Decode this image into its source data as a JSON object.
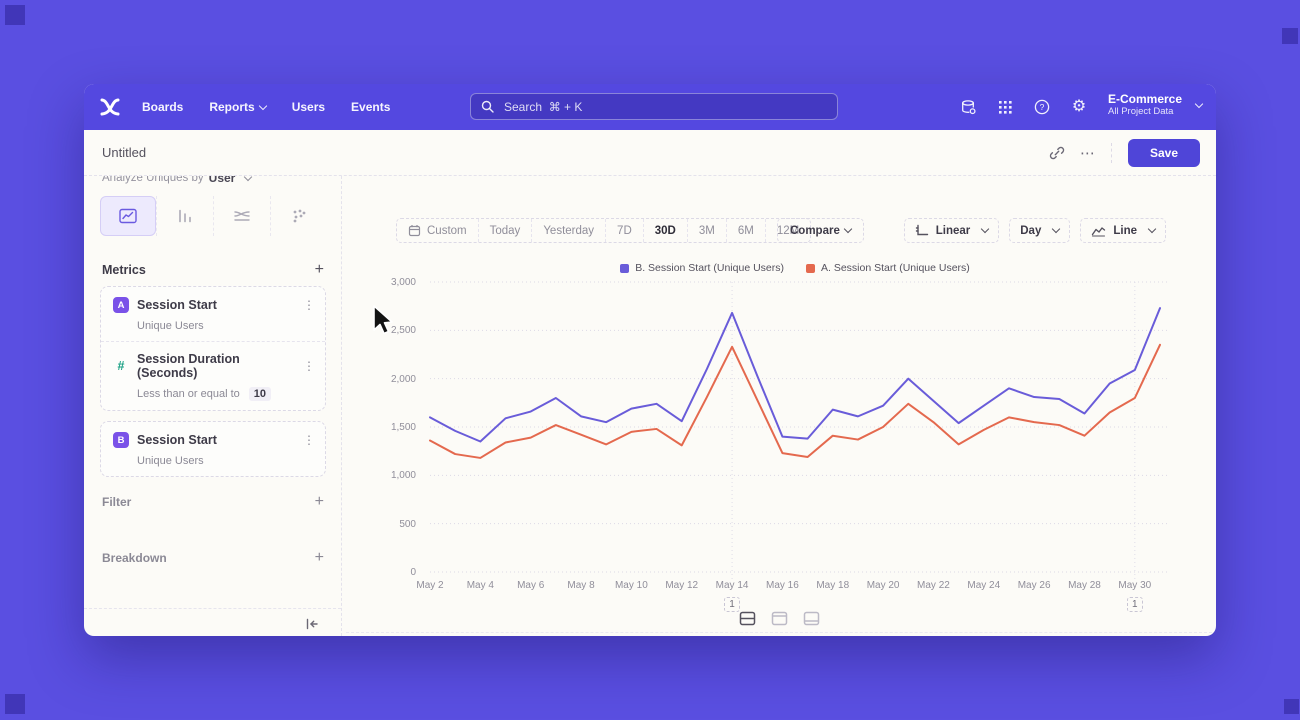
{
  "navbar": {
    "items": [
      {
        "label": "Boards",
        "chevron": false
      },
      {
        "label": "Reports",
        "chevron": true
      },
      {
        "label": "Users",
        "chevron": false
      },
      {
        "label": "Events",
        "chevron": false
      }
    ],
    "search_placeholder": "Search  ⌘ + K",
    "project": {
      "name": "E-Commerce",
      "subtitle": "All Project Data"
    }
  },
  "titlebar": {
    "title": "Untitled",
    "save_label": "Save",
    "ellipsis": "⋯"
  },
  "sidebar": {
    "analyze_prefix": "Analyze Uniques by",
    "analyze_value": "User",
    "metrics_header": "Metrics",
    "metric_groups": [
      {
        "items": [
          {
            "badge": "A",
            "badge_style": "filled",
            "name": "Session Start",
            "subtitle": "Unique Users"
          },
          {
            "badge": "#",
            "badge_style": "plain",
            "name": "Session Duration (Seconds)",
            "subtitle": "Less than or equal to",
            "subtitle_value": "10"
          }
        ]
      },
      {
        "items": [
          {
            "badge": "B",
            "badge_style": "filled",
            "name": "Session Start",
            "subtitle": "Unique Users"
          }
        ]
      }
    ],
    "filter_label": "Filter",
    "breakdown_label": "Breakdown"
  },
  "toolbar": {
    "ranges": [
      {
        "label": "Custom",
        "icon": "calendar"
      },
      {
        "label": "Today"
      },
      {
        "label": "Yesterday"
      },
      {
        "label": "7D"
      },
      {
        "label": "30D"
      },
      {
        "label": "3M"
      },
      {
        "label": "6M"
      },
      {
        "label": "12M"
      }
    ],
    "active_range": "30D",
    "compare_label": "Compare",
    "scale_label": "Linear",
    "interval_label": "Day",
    "chart_type_label": "Line"
  },
  "chart_data": {
    "type": "line",
    "x": [
      "May 2",
      "May 3",
      "May 4",
      "May 5",
      "May 6",
      "May 7",
      "May 8",
      "May 9",
      "May 10",
      "May 11",
      "May 12",
      "May 13",
      "May 14",
      "May 15",
      "May 16",
      "May 17",
      "May 18",
      "May 19",
      "May 20",
      "May 21",
      "May 22",
      "May 23",
      "May 24",
      "May 25",
      "May 26",
      "May 27",
      "May 28",
      "May 29",
      "May 30",
      "May 31"
    ],
    "x_tick_every": 2,
    "series": [
      {
        "name": "B. Session Start (Unique Users)",
        "color": "#695CD9",
        "values": [
          1600,
          1460,
          1350,
          1590,
          1660,
          1800,
          1610,
          1550,
          1690,
          1740,
          1560,
          2100,
          2680,
          2030,
          1400,
          1380,
          1680,
          1610,
          1720,
          2000,
          1770,
          1540,
          1720,
          1900,
          1810,
          1790,
          1640,
          1950,
          2090,
          2730
        ]
      },
      {
        "name": "A. Session Start (Unique Users)",
        "color": "#E4694E",
        "values": [
          1360,
          1220,
          1180,
          1340,
          1390,
          1520,
          1420,
          1320,
          1450,
          1480,
          1310,
          1810,
          2330,
          1780,
          1230,
          1190,
          1410,
          1370,
          1500,
          1740,
          1550,
          1320,
          1470,
          1600,
          1550,
          1520,
          1410,
          1650,
          1800,
          2350
        ]
      }
    ],
    "ylim": [
      0,
      3000
    ],
    "ytick_step": 500,
    "ytick_labels": [
      "0",
      "500",
      "1,000",
      "1,500",
      "2,000",
      "2,500",
      "3,000"
    ],
    "annotations": [
      {
        "index": 12,
        "label": "1"
      },
      {
        "index": 28,
        "label": "1"
      }
    ],
    "grid": "dotted",
    "legend_position": "top"
  },
  "colors": {
    "background": "#5A4FE1",
    "navbar": "#5448E0",
    "save_button": "#4F45D8",
    "series_b": "#695CD9",
    "series_a": "#E4694E",
    "badge_purple": "#7A52E8",
    "badge_teal": "#18A083"
  }
}
